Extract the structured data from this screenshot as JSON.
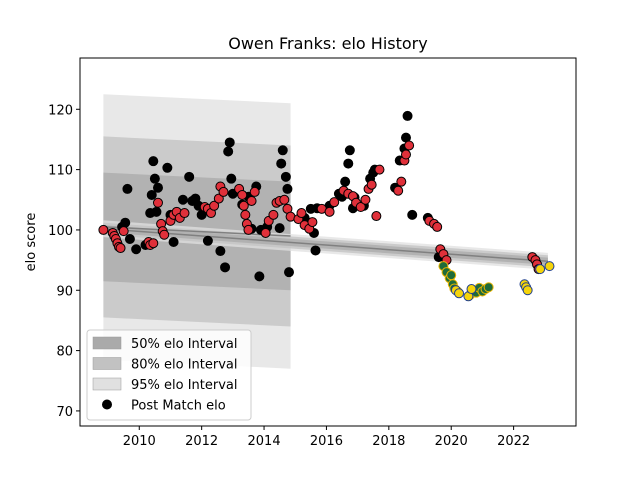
{
  "chart_data": {
    "type": "scatter",
    "title": "Owen Franks: elo History",
    "xlabel": "",
    "ylabel": "elo score",
    "xlim": [
      2008.1,
      2024.0
    ],
    "ylim": [
      67.5,
      128.5
    ],
    "x_ticks": [
      2010,
      2012,
      2014,
      2016,
      2018,
      2020,
      2022
    ],
    "x_tick_labels": [
      "2010",
      "2012",
      "2014",
      "2016",
      "2018",
      "2020",
      "2022"
    ],
    "y_ticks": [
      70,
      80,
      90,
      100,
      110,
      120
    ],
    "y_tick_labels": [
      "70",
      "80",
      "90",
      "100",
      "110",
      "120"
    ],
    "grid": false,
    "legend_position": "lower-left",
    "legend": [
      {
        "label": "50% elo Interval",
        "kind": "patch",
        "color": "#aaaaaa"
      },
      {
        "label": "80% elo Interval",
        "kind": "patch",
        "color": "#c2c2c2"
      },
      {
        "label": "95% elo Interval",
        "kind": "patch",
        "color": "#e0e0e0"
      },
      {
        "label": "Post Match elo",
        "kind": "marker",
        "color": "#000000"
      }
    ],
    "colors": {
      "band95": "#e0e0e0",
      "band80": "#c2c2c2",
      "band50": "#aaaaaa",
      "mean_line": "#808080",
      "red_team": "#e0303a",
      "black_team": "#000000",
      "green_team": "#1f6b3a",
      "green_edge": "#e8b400",
      "yellow_team": "#f5d40a",
      "yellow_edge": "#1f3f8f"
    },
    "intervals": [
      {
        "name": "band-a",
        "x": [
          2008.85,
          2014.85
        ],
        "mean": [
          100.5,
          99.0
        ],
        "p50": [
          9.0,
          9.0
        ],
        "p80": [
          15.0,
          15.0
        ],
        "p95": [
          22.0,
          22.0
        ]
      },
      {
        "name": "band-b",
        "x": [
          2008.85,
          2023.1
        ],
        "mean": [
          100.2,
          94.8
        ],
        "p50": [
          0.6,
          0.6
        ],
        "p80": [
          1.0,
          1.0
        ],
        "p95": [
          1.4,
          1.4
        ]
      }
    ],
    "series": [
      {
        "name": "Post Match elo",
        "team_color": "black",
        "points": [
          [
            2009.45,
            100.5
          ],
          [
            2009.55,
            101.2
          ],
          [
            2009.62,
            106.8
          ],
          [
            2009.7,
            98.5
          ],
          [
            2009.9,
            96.8
          ],
          [
            2010.2,
            97.5
          ],
          [
            2010.35,
            102.8
          ],
          [
            2010.4,
            105.8
          ],
          [
            2010.45,
            111.4
          ],
          [
            2010.5,
            108.5
          ],
          [
            2010.55,
            103.0
          ],
          [
            2010.6,
            107.0
          ],
          [
            2010.9,
            110.3
          ],
          [
            2011.0,
            102.5
          ],
          [
            2011.1,
            98.0
          ],
          [
            2011.4,
            105.0
          ],
          [
            2011.6,
            108.8
          ],
          [
            2011.7,
            104.8
          ],
          [
            2011.8,
            105.2
          ],
          [
            2011.9,
            104.0
          ],
          [
            2012.0,
            102.5
          ],
          [
            2012.2,
            98.2
          ],
          [
            2012.6,
            96.5
          ],
          [
            2012.75,
            93.8
          ],
          [
            2012.85,
            113.0
          ],
          [
            2012.9,
            114.5
          ],
          [
            2012.95,
            108.5
          ],
          [
            2013.0,
            106.0
          ],
          [
            2013.3,
            104.2
          ],
          [
            2013.5,
            105.5
          ],
          [
            2013.6,
            100.2
          ],
          [
            2013.75,
            107.2
          ],
          [
            2013.85,
            92.3
          ],
          [
            2013.9,
            100.0
          ],
          [
            2014.1,
            100.5
          ],
          [
            2014.5,
            100.3
          ],
          [
            2014.55,
            111.0
          ],
          [
            2014.6,
            113.2
          ],
          [
            2014.7,
            108.8
          ],
          [
            2014.75,
            106.8
          ],
          [
            2014.8,
            93.0
          ],
          [
            2015.3,
            102.0
          ],
          [
            2015.5,
            103.5
          ],
          [
            2015.6,
            99.5
          ],
          [
            2015.65,
            96.6
          ],
          [
            2015.7,
            103.6
          ],
          [
            2016.1,
            104.0
          ],
          [
            2016.4,
            106.0
          ],
          [
            2016.5,
            105.5
          ],
          [
            2016.6,
            108.0
          ],
          [
            2016.7,
            111.0
          ],
          [
            2016.75,
            113.2
          ],
          [
            2016.85,
            103.6
          ],
          [
            2016.9,
            105.4
          ],
          [
            2017.2,
            104.0
          ],
          [
            2017.4,
            108.5
          ],
          [
            2017.5,
            109.5
          ],
          [
            2017.55,
            110.0
          ],
          [
            2018.2,
            107.0
          ],
          [
            2018.35,
            111.5
          ],
          [
            2018.5,
            113.5
          ],
          [
            2018.55,
            115.3
          ],
          [
            2018.6,
            118.9
          ],
          [
            2018.75,
            102.5
          ],
          [
            2019.25,
            102.0
          ],
          [
            2019.6,
            95.5
          ]
        ]
      },
      {
        "name": "Post Match elo",
        "team_color": "red",
        "points": [
          [
            2008.85,
            100.0
          ],
          [
            2009.15,
            99.5
          ],
          [
            2009.2,
            99.0
          ],
          [
            2009.25,
            98.5
          ],
          [
            2009.3,
            97.8
          ],
          [
            2009.35,
            97.2
          ],
          [
            2009.4,
            97.0
          ],
          [
            2009.5,
            99.8
          ],
          [
            2010.3,
            98.0
          ],
          [
            2010.35,
            97.5
          ],
          [
            2010.45,
            97.8
          ],
          [
            2010.6,
            104.5
          ],
          [
            2010.7,
            101.0
          ],
          [
            2010.75,
            99.8
          ],
          [
            2010.8,
            99.2
          ],
          [
            2011.0,
            101.5
          ],
          [
            2011.1,
            102.5
          ],
          [
            2011.2,
            103.0
          ],
          [
            2011.3,
            102.0
          ],
          [
            2011.45,
            102.8
          ],
          [
            2012.1,
            103.8
          ],
          [
            2012.2,
            103.5
          ],
          [
            2012.3,
            102.8
          ],
          [
            2012.4,
            104.0
          ],
          [
            2012.55,
            105.2
          ],
          [
            2012.6,
            107.2
          ],
          [
            2012.7,
            106.3
          ],
          [
            2013.2,
            106.8
          ],
          [
            2013.3,
            105.8
          ],
          [
            2013.35,
            104.0
          ],
          [
            2013.4,
            102.5
          ],
          [
            2013.45,
            101.0
          ],
          [
            2013.5,
            100.0
          ],
          [
            2013.6,
            104.8
          ],
          [
            2013.7,
            106.3
          ],
          [
            2014.05,
            99.5
          ],
          [
            2014.15,
            101.5
          ],
          [
            2014.3,
            102.5
          ],
          [
            2014.4,
            104.5
          ],
          [
            2014.5,
            104.8
          ],
          [
            2014.65,
            105.0
          ],
          [
            2014.75,
            103.5
          ],
          [
            2014.85,
            102.2
          ],
          [
            2015.1,
            101.8
          ],
          [
            2015.2,
            102.8
          ],
          [
            2015.3,
            100.8
          ],
          [
            2015.45,
            100.2
          ],
          [
            2015.55,
            101.3
          ],
          [
            2015.85,
            103.5
          ],
          [
            2016.1,
            103.0
          ],
          [
            2016.25,
            104.6
          ],
          [
            2016.55,
            106.5
          ],
          [
            2016.7,
            106.0
          ],
          [
            2016.85,
            105.6
          ],
          [
            2016.95,
            104.5
          ],
          [
            2017.1,
            103.8
          ],
          [
            2017.25,
            105.0
          ],
          [
            2017.35,
            106.8
          ],
          [
            2017.45,
            107.5
          ],
          [
            2017.6,
            102.3
          ],
          [
            2017.7,
            110.0
          ],
          [
            2018.3,
            106.5
          ],
          [
            2018.4,
            108.0
          ],
          [
            2018.5,
            111.5
          ],
          [
            2018.55,
            112.5
          ],
          [
            2018.65,
            114.0
          ],
          [
            2019.3,
            101.5
          ],
          [
            2019.45,
            101.0
          ],
          [
            2019.55,
            100.5
          ],
          [
            2019.65,
            96.8
          ],
          [
            2019.75,
            96.0
          ],
          [
            2019.85,
            95.0
          ],
          [
            2022.6,
            95.5
          ],
          [
            2022.7,
            95.0
          ],
          [
            2022.75,
            94.3
          ],
          [
            2022.8,
            93.5
          ]
        ]
      },
      {
        "name": "Post Match elo",
        "team_color": "green",
        "points": [
          [
            2019.75,
            94.0
          ],
          [
            2019.85,
            93.0
          ],
          [
            2019.95,
            92.0
          ],
          [
            2020.0,
            92.5
          ],
          [
            2020.05,
            91.0
          ],
          [
            2020.1,
            90.3
          ],
          [
            2020.2,
            89.8
          ],
          [
            2020.6,
            89.2
          ],
          [
            2020.7,
            90.0
          ],
          [
            2020.8,
            89.6
          ],
          [
            2020.9,
            90.4
          ],
          [
            2021.0,
            89.8
          ],
          [
            2021.1,
            90.2
          ],
          [
            2021.2,
            90.5
          ]
        ]
      },
      {
        "name": "Post Match elo",
        "team_color": "yellow",
        "points": [
          [
            2020.15,
            90.0
          ],
          [
            2020.25,
            89.5
          ],
          [
            2020.55,
            89.0
          ],
          [
            2020.65,
            90.2
          ],
          [
            2022.35,
            91.0
          ],
          [
            2022.4,
            90.5
          ],
          [
            2022.45,
            90.0
          ],
          [
            2022.85,
            93.5
          ],
          [
            2023.15,
            94.0
          ]
        ]
      }
    ]
  }
}
